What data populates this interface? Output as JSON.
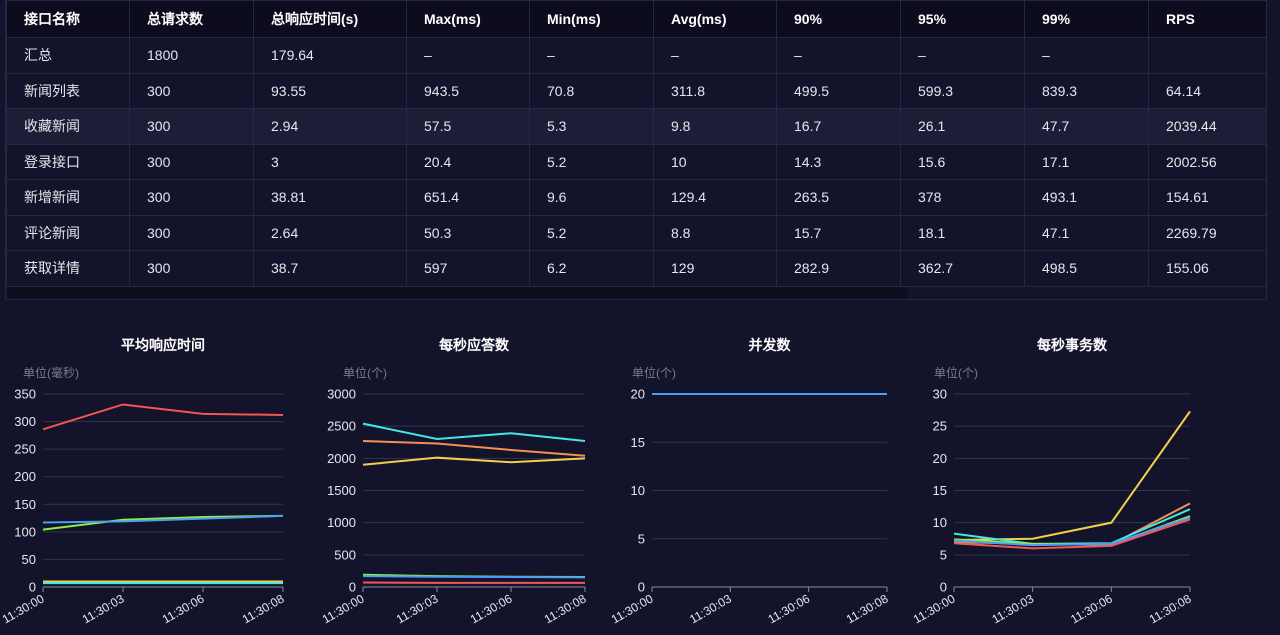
{
  "table": {
    "columns": [
      "接口名称",
      "总请求数",
      "总响应时间(s)",
      "Max(ms)",
      "Min(ms)",
      "Avg(ms)",
      "90%",
      "95%",
      "99%",
      "RPS"
    ],
    "rows": [
      [
        "汇总",
        "1800",
        "179.64",
        "–",
        "–",
        "–",
        "–",
        "–",
        "–",
        ""
      ],
      [
        "新闻列表",
        "300",
        "93.55",
        "943.5",
        "70.8",
        "311.8",
        "499.5",
        "599.3",
        "839.3",
        "64.14"
      ],
      [
        "收藏新闻",
        "300",
        "2.94",
        "57.5",
        "5.3",
        "9.8",
        "16.7",
        "26.1",
        "47.7",
        "2039.44"
      ],
      [
        "登录接口",
        "300",
        "3",
        "20.4",
        "5.2",
        "10",
        "14.3",
        "15.6",
        "17.1",
        "2002.56"
      ],
      [
        "新增新闻",
        "300",
        "38.81",
        "651.4",
        "9.6",
        "129.4",
        "263.5",
        "378",
        "493.1",
        "154.61"
      ],
      [
        "评论新闻",
        "300",
        "2.64",
        "50.3",
        "5.2",
        "8.8",
        "15.7",
        "18.1",
        "47.1",
        "2269.79"
      ],
      [
        "获取详情",
        "300",
        "38.7",
        "597",
        "6.2",
        "129",
        "282.9",
        "362.7",
        "498.5",
        "155.06"
      ]
    ],
    "highlighted_row": 2
  },
  "chart_data": [
    {
      "type": "line",
      "title": "平均响应时间",
      "ylabel": "单位(毫秒)",
      "ylim": [
        0,
        350
      ],
      "yticks": [
        0,
        50,
        100,
        150,
        200,
        250,
        300,
        350
      ],
      "grid": true,
      "categories": [
        "11:30:00",
        "11:30:03",
        "11:30:06",
        "11:30:08"
      ],
      "series": [
        {
          "color": "#f25757",
          "values": [
            286,
            331,
            314,
            312
          ]
        },
        {
          "color": "#90ee40",
          "values": [
            104,
            122,
            127,
            129
          ]
        },
        {
          "color": "#4a9ff5",
          "values": [
            117,
            119,
            124,
            129
          ]
        },
        {
          "color": "#f59050",
          "values": [
            9.8,
            9.8,
            9.8,
            9.8
          ]
        },
        {
          "color": "#f5cf4a",
          "values": [
            10,
            10,
            10,
            10
          ]
        },
        {
          "color": "#40e8e8",
          "values": [
            7,
            7,
            7,
            7
          ]
        }
      ]
    },
    {
      "type": "line",
      "title": "每秒应答数",
      "ylabel": "单位(个)",
      "ylim": [
        0,
        3000
      ],
      "yticks": [
        0,
        500,
        1000,
        1500,
        2000,
        2500,
        3000
      ],
      "grid": true,
      "categories": [
        "11:30:00",
        "11:30:03",
        "11:30:06",
        "11:30:08"
      ],
      "series": [
        {
          "color": "#40e8e8",
          "values": [
            2540,
            2300,
            2390,
            2270
          ]
        },
        {
          "color": "#f59050",
          "values": [
            2270,
            2230,
            2130,
            2040
          ]
        },
        {
          "color": "#f5cf4a",
          "values": [
            1900,
            2010,
            1940,
            2000
          ]
        },
        {
          "color": "#90ee40",
          "values": [
            190,
            170,
            160,
            155
          ]
        },
        {
          "color": "#4a9ff5",
          "values": [
            170,
            160,
            155,
            150
          ]
        },
        {
          "color": "#f25757",
          "values": [
            70,
            65,
            64,
            64
          ]
        }
      ]
    },
    {
      "type": "line",
      "title": "并发数",
      "ylabel": "单位(个)",
      "ylim": [
        0,
        20
      ],
      "yticks": [
        0,
        5,
        10,
        15,
        20
      ],
      "grid": true,
      "categories": [
        "11:30:00",
        "11:30:03",
        "11:30:06",
        "11:30:08"
      ],
      "series": [
        {
          "color": "#4a9ff5",
          "values": [
            20,
            20,
            20,
            20
          ]
        }
      ]
    },
    {
      "type": "line",
      "title": "每秒事务数",
      "ylabel": "单位(个)",
      "ylim": [
        0,
        30
      ],
      "yticks": [
        0,
        5,
        10,
        15,
        20,
        25,
        30
      ],
      "grid": true,
      "categories": [
        "11:30:00",
        "11:30:03",
        "11:30:06",
        "11:30:08"
      ],
      "series": [
        {
          "color": "#f5cf4a",
          "values": [
            7.3,
            7.5,
            10,
            27.3
          ]
        },
        {
          "color": "#f59050",
          "values": [
            7,
            6.7,
            6.6,
            13
          ]
        },
        {
          "color": "#40e8e8",
          "values": [
            8.3,
            6.7,
            6.8,
            12.1
          ]
        },
        {
          "color": "#90ee40",
          "values": [
            7.4,
            6.7,
            6.6,
            11
          ]
        },
        {
          "color": "#4a9ff5",
          "values": [
            7.2,
            6.5,
            6.7,
            10.8
          ]
        },
        {
          "color": "#f25757",
          "values": [
            6.8,
            6,
            6.4,
            10.5
          ]
        }
      ]
    }
  ]
}
